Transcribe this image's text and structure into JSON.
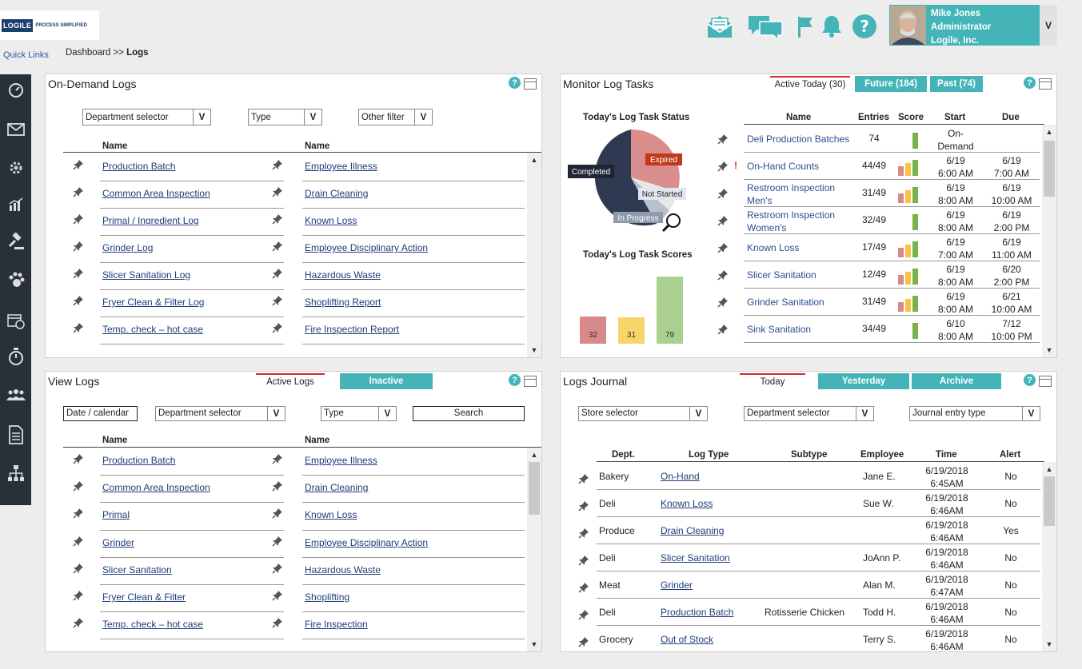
{
  "header": {
    "logo_main": "LOGILE",
    "logo_tag": "PROCESS SIMPLIFIED",
    "quick_links": "Quick Links",
    "breadcrumb_prefix": "Dashboard >> ",
    "breadcrumb_current": "Logs",
    "icons": [
      "messages-envelope-icon",
      "chat-bubbles-icon",
      "flag-icon",
      "bell-icon",
      "help-icon"
    ],
    "user": {
      "name": "Mike Jones",
      "role": "Administrator",
      "company": "Logile, Inc.",
      "dropdown": "V"
    }
  },
  "sidebar": {
    "icons": [
      "dashboard-gauge-icon",
      "mail-icon",
      "settings-gear-icon",
      "analytics-chart-icon",
      "gavel-icon",
      "paw-icon",
      "schedule-calendar-icon",
      "timer-icon",
      "team-icon",
      "document-icon",
      "org-chart-icon"
    ]
  },
  "on_demand": {
    "title": "On-Demand Logs",
    "filters": [
      {
        "label": "Department selector",
        "btn": "V"
      },
      {
        "label": "Type",
        "btn": "V"
      },
      {
        "label": "Other filter",
        "btn": "V"
      }
    ],
    "col1_header": "Name",
    "col2_header": "Name",
    "col1": [
      "Production Batch",
      "Common Area Inspection",
      "Primal / Ingredient Log",
      "Grinder Log",
      "Slicer Sanitation Log",
      "Fryer Clean & Filter Log",
      "Temp. check – hot case"
    ],
    "col2": [
      "Employee Illness",
      "Drain Cleaning ",
      "Known Loss",
      "Employee Disciplinary Action",
      "Hazardous Waste ",
      "Shoplifting Report",
      "Fire Inspection Report"
    ]
  },
  "monitor": {
    "title": "Monitor Log Tasks",
    "tabs": [
      "Active Today (30)",
      "Future (184)",
      "Past (74)"
    ],
    "status_title": "Today's Log Task Status",
    "pie_labels": {
      "completed": "Completed",
      "expired": "Expired",
      "not_started": "Not Started",
      "in_progress": "In Progress"
    },
    "scores_title": "Today's Log Task Scores",
    "scores": [
      32,
      31,
      79
    ],
    "score_colors": [
      "#d88a8a",
      "#f7d568",
      "#a9d08e"
    ],
    "headers": {
      "name": "Name",
      "entries": "Entries",
      "score": "Score",
      "start": "Start",
      "due": "Due"
    },
    "rows": [
      {
        "name": "Deli Production Batches",
        "entries": "74",
        "start": "On-\nDemand",
        "due": "",
        "alert": ""
      },
      {
        "name": "On-Hand Counts",
        "entries": "44/49",
        "start": "6/19\n6:00 AM",
        "due": "6/19\n7:00 AM",
        "alert": "!"
      },
      {
        "name": "Restroom Inspection\nMen's",
        "entries": "31/49",
        "start": "6/19\n8:00 AM",
        "due": "6/19\n10:00 AM",
        "alert": ""
      },
      {
        "name": "Restroom Inspection\nWomen's",
        "entries": "32/49",
        "start": "6/19\n8:00 AM",
        "due": "6/19\n2:00 PM",
        "alert": ""
      },
      {
        "name": "Known Loss",
        "entries": "17/49",
        "start": "6/19\n7:00 AM",
        "due": "6/19\n11:00 AM",
        "alert": ""
      },
      {
        "name": "Slicer Sanitation",
        "entries": "12/49",
        "start": "6/19\n8:00 AM",
        "due": "6/20\n2:00 PM",
        "alert": ""
      },
      {
        "name": "Grinder Sanitation",
        "entries": "31/49",
        "start": "6/19\n8:00 AM",
        "due": "6/21\n10:00 AM",
        "alert": ""
      },
      {
        "name": "Sink Sanitation",
        "entries": "34/49",
        "start": "6/10\n8:00 AM",
        "due": "7/12\n10:00 PM",
        "alert": ""
      }
    ]
  },
  "view_logs": {
    "title": "View Logs",
    "tabs": [
      "Active Logs",
      "Inactive"
    ],
    "date_label": "Date / calendar",
    "filters": [
      {
        "label": "Department selector",
        "btn": "V"
      },
      {
        "label": "Type",
        "btn": "V"
      }
    ],
    "search_label": "Search",
    "col1_header": "Name",
    "col2_header": "Name",
    "col1": [
      "Production Batch",
      "Common Area Inspection",
      "Primal",
      "Grinder",
      "Slicer Sanitation",
      "Fryer Clean & Filter",
      "Temp. check – hot case"
    ],
    "col2": [
      "Employee Illness",
      "Drain Cleaning",
      "Known Loss",
      "Employee Disciplinary Action",
      "Hazardous Waste ",
      "Shoplifting",
      "Fire Inspection"
    ]
  },
  "journal": {
    "title": "Logs Journal",
    "tabs": [
      "Today",
      "Yesterday",
      "Archive"
    ],
    "filters": [
      {
        "label": "Store selector",
        "btn": "V"
      },
      {
        "label": "Department selector",
        "btn": "V"
      },
      {
        "label": "Journal entry type",
        "btn": "V"
      }
    ],
    "headers": {
      "dept": "Dept.",
      "log_type": "Log Type",
      "subtype": "Subtype",
      "employee": "Employee",
      "time": "Time",
      "alert": "Alert"
    },
    "rows": [
      {
        "dept": "Bakery",
        "log_type": "On-Hand",
        "subtype": "",
        "employee": "Jane E.",
        "time": "6/19/2018\n6:45AM",
        "alert": "No"
      },
      {
        "dept": "Deli",
        "log_type": "Known Loss",
        "subtype": "",
        "employee": "Sue W.",
        "time": "6/19/2018\n6:46AM",
        "alert": "No"
      },
      {
        "dept": "Produce",
        "log_type": "Drain Cleaning",
        "subtype": "",
        "employee": "",
        "time": "6/19/2018\n6:46AM",
        "alert": "Yes"
      },
      {
        "dept": "Deli",
        "log_type": "Slicer Sanitation",
        "subtype": "",
        "employee": "JoAnn P.",
        "time": "6/19/2018\n6:46AM",
        "alert": "No"
      },
      {
        "dept": "Meat",
        "log_type": "Grinder",
        "subtype": "",
        "employee": "Alan M.",
        "time": "6/19/2018\n6:47AM",
        "alert": "No"
      },
      {
        "dept": "Deli",
        "log_type": "Production Batch",
        "subtype": "Rotisserie Chicken",
        "employee": "Todd H.",
        "time": "6/19/2018\n6:46AM",
        "alert": "No"
      },
      {
        "dept": "Grocery",
        "log_type": "Out of Stock",
        "subtype": "",
        "employee": "Terry S.",
        "time": "6/19/2018\n6:46AM",
        "alert": "No"
      }
    ]
  },
  "colors": {
    "accent": "#45b4b8",
    "sidebar": "#283039",
    "active_tab_line": "#d62b2b",
    "link": "#1f3c78"
  }
}
